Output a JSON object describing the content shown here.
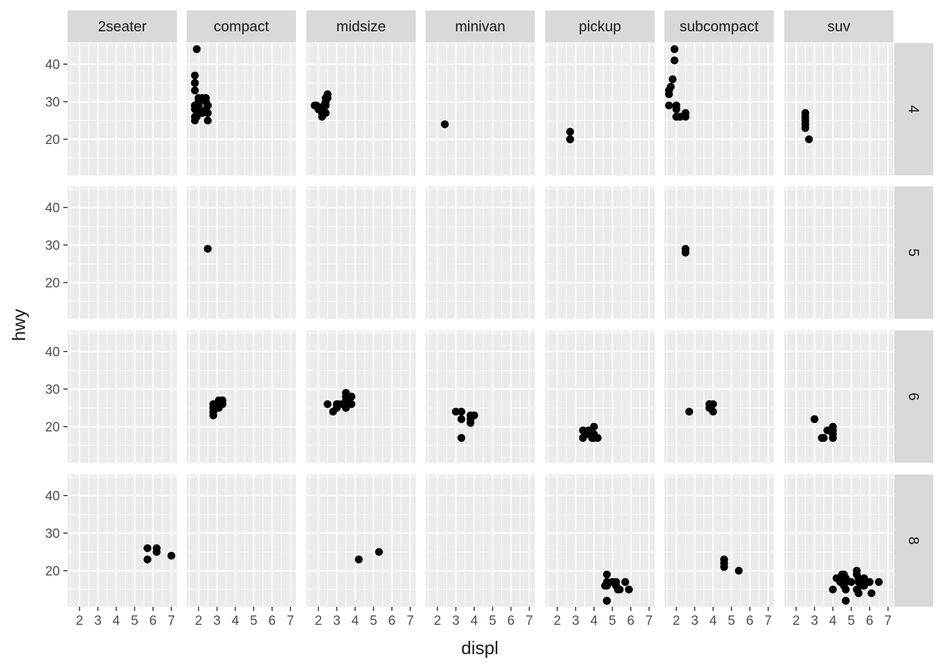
{
  "chart_data": {
    "type": "scatter",
    "title": "",
    "xlabel": "displ",
    "ylabel": "hwy",
    "xlim": [
      1.35,
      7.3
    ],
    "ylim": [
      10.4,
      45.6
    ],
    "x_ticks": [
      2,
      3,
      4,
      5,
      6,
      7
    ],
    "y_ticks": [
      20,
      30,
      40
    ],
    "grid": true,
    "legend": "none",
    "facet_cols": [
      "2seater",
      "compact",
      "midsize",
      "minivan",
      "pickup",
      "subcompact",
      "suv"
    ],
    "facet_rows": [
      "4",
      "5",
      "6",
      "8"
    ],
    "panels": [
      {
        "row": "4",
        "col": "compact",
        "points": [
          [
            1.8,
            29
          ],
          [
            1.8,
            29
          ],
          [
            2.0,
            31
          ],
          [
            2.0,
            30
          ],
          [
            1.8,
            26
          ],
          [
            1.8,
            25
          ],
          [
            2.0,
            28
          ],
          [
            2.0,
            27
          ],
          [
            1.8,
            28
          ],
          [
            1.8,
            29
          ],
          [
            2.0,
            29
          ],
          [
            2.0,
            30
          ],
          [
            1.9,
            44
          ],
          [
            1.9,
            29
          ],
          [
            1.9,
            26
          ],
          [
            1.9,
            29
          ],
          [
            2.0,
            29
          ],
          [
            2.0,
            29
          ],
          [
            2.5,
            29
          ],
          [
            2.5,
            29
          ],
          [
            2.5,
            25
          ],
          [
            2.5,
            27
          ],
          [
            2.2,
            31
          ],
          [
            2.2,
            27
          ],
          [
            2.4,
            30
          ],
          [
            2.4,
            31
          ],
          [
            1.8,
            33
          ],
          [
            1.8,
            35
          ],
          [
            1.8,
            37
          ],
          [
            1.8,
            35
          ],
          [
            2.4,
            28
          ],
          [
            2.5,
            29
          ],
          [
            2.0,
            31
          ]
        ]
      },
      {
        "row": "5",
        "col": "compact",
        "points": [
          [
            2.5,
            29
          ]
        ]
      },
      {
        "row": "6",
        "col": "compact",
        "points": [
          [
            2.8,
            26
          ],
          [
            2.8,
            25
          ],
          [
            3.1,
            27
          ],
          [
            3.1,
            25
          ],
          [
            2.8,
            24
          ],
          [
            2.8,
            23
          ],
          [
            3.3,
            27
          ],
          [
            3.3,
            26
          ],
          [
            3.0,
            26
          ],
          [
            3.0,
            25
          ]
        ]
      },
      {
        "row": "8",
        "col": "2seater",
        "points": [
          [
            5.7,
            26
          ],
          [
            5.7,
            23
          ],
          [
            6.2,
            26
          ],
          [
            6.2,
            25
          ],
          [
            7.0,
            24
          ]
        ]
      },
      {
        "row": "4",
        "col": "midsize",
        "points": [
          [
            1.8,
            29
          ],
          [
            2.0,
            28
          ],
          [
            2.4,
            29
          ],
          [
            2.4,
            30
          ],
          [
            2.5,
            32
          ],
          [
            2.5,
            31
          ],
          [
            2.2,
            26
          ],
          [
            2.2,
            27
          ],
          [
            2.4,
            27
          ],
          [
            2.4,
            31
          ],
          [
            2.1,
            28
          ],
          [
            2.3,
            29
          ],
          [
            1.9,
            29
          ]
        ]
      },
      {
        "row": "6",
        "col": "midsize",
        "points": [
          [
            2.8,
            24
          ],
          [
            3.1,
            26
          ],
          [
            3.5,
            29
          ],
          [
            3.5,
            26
          ],
          [
            3.3,
            26
          ],
          [
            3.5,
            28
          ],
          [
            3.5,
            25
          ],
          [
            3.0,
            26
          ],
          [
            3.0,
            25
          ],
          [
            3.6,
            26
          ],
          [
            3.6,
            27
          ],
          [
            3.8,
            26
          ],
          [
            3.8,
            28
          ],
          [
            3.5,
            28
          ],
          [
            3.5,
            27
          ],
          [
            3.7,
            26
          ],
          [
            2.5,
            26
          ]
        ]
      },
      {
        "row": "8",
        "col": "midsize",
        "points": [
          [
            4.2,
            23
          ],
          [
            5.3,
            25
          ]
        ]
      },
      {
        "row": "4",
        "col": "minivan",
        "points": [
          [
            2.4,
            24
          ]
        ]
      },
      {
        "row": "6",
        "col": "minivan",
        "points": [
          [
            3.0,
            24
          ],
          [
            3.3,
            22
          ],
          [
            3.3,
            24
          ],
          [
            3.3,
            17
          ],
          [
            3.8,
            22
          ],
          [
            3.8,
            21
          ],
          [
            4.0,
            23
          ],
          [
            3.8,
            23
          ]
        ]
      },
      {
        "row": "4",
        "col": "pickup",
        "points": [
          [
            2.7,
            20
          ],
          [
            2.7,
            22
          ],
          [
            2.7,
            20
          ]
        ]
      },
      {
        "row": "6",
        "col": "pickup",
        "points": [
          [
            3.4,
            19
          ],
          [
            3.4,
            17
          ],
          [
            3.7,
            19
          ],
          [
            3.9,
            17
          ],
          [
            4.0,
            20
          ],
          [
            4.0,
            18
          ],
          [
            4.2,
            17
          ],
          [
            3.7,
            18
          ],
          [
            4.0,
            17
          ]
        ]
      },
      {
        "row": "8",
        "col": "pickup",
        "points": [
          [
            4.7,
            12
          ],
          [
            4.7,
            17
          ],
          [
            5.2,
            17
          ],
          [
            5.7,
            17
          ],
          [
            5.9,
            15
          ],
          [
            4.7,
            16
          ],
          [
            4.7,
            19
          ],
          [
            5.2,
            16
          ],
          [
            5.3,
            15
          ],
          [
            5.4,
            15
          ],
          [
            4.6,
            16
          ],
          [
            5.0,
            17
          ],
          [
            4.7,
            12
          ]
        ]
      },
      {
        "row": "4",
        "col": "subcompact",
        "points": [
          [
            1.6,
            32
          ],
          [
            1.6,
            33
          ],
          [
            1.6,
            29
          ],
          [
            1.7,
            34
          ],
          [
            1.8,
            36
          ],
          [
            1.9,
            44
          ],
          [
            2.0,
            26
          ],
          [
            2.0,
            29
          ],
          [
            1.9,
            41
          ],
          [
            2.0,
            29
          ],
          [
            2.0,
            26
          ],
          [
            2.2,
            26
          ],
          [
            2.5,
            26
          ],
          [
            2.5,
            27
          ],
          [
            2.0,
            28
          ],
          [
            2.2,
            26
          ]
        ]
      },
      {
        "row": "5",
        "col": "subcompact",
        "points": [
          [
            2.5,
            28
          ],
          [
            2.5,
            29
          ]
        ]
      },
      {
        "row": "6",
        "col": "subcompact",
        "points": [
          [
            2.7,
            24
          ],
          [
            3.8,
            26
          ],
          [
            3.8,
            25
          ],
          [
            4.0,
            26
          ],
          [
            4.0,
            24
          ],
          [
            3.8,
            26
          ]
        ]
      },
      {
        "row": "8",
        "col": "subcompact",
        "points": [
          [
            4.6,
            23
          ],
          [
            4.6,
            22
          ],
          [
            4.6,
            21
          ],
          [
            5.4,
            20
          ]
        ]
      },
      {
        "row": "4",
        "col": "suv",
        "points": [
          [
            2.5,
            26
          ],
          [
            2.5,
            25
          ],
          [
            2.5,
            24
          ],
          [
            2.5,
            23
          ],
          [
            2.5,
            27
          ],
          [
            2.7,
            20
          ]
        ]
      },
      {
        "row": "6",
        "col": "suv",
        "points": [
          [
            3.0,
            22
          ],
          [
            3.4,
            17
          ],
          [
            3.7,
            19
          ],
          [
            4.0,
            20
          ],
          [
            4.0,
            17
          ],
          [
            4.0,
            19
          ],
          [
            3.5,
            17
          ],
          [
            4.0,
            18
          ],
          [
            3.8,
            19
          ],
          [
            4.0,
            17
          ]
        ]
      },
      {
        "row": "8",
        "col": "suv",
        "points": [
          [
            4.0,
            15
          ],
          [
            4.2,
            18
          ],
          [
            4.6,
            19
          ],
          [
            4.7,
            15
          ],
          [
            4.7,
            12
          ],
          [
            4.7,
            17
          ],
          [
            4.7,
            18
          ],
          [
            5.0,
            17
          ],
          [
            5.3,
            20
          ],
          [
            5.3,
            19
          ],
          [
            5.3,
            15
          ],
          [
            5.4,
            17
          ],
          [
            5.4,
            18
          ],
          [
            5.7,
            17
          ],
          [
            5.7,
            16
          ],
          [
            5.9,
            17
          ],
          [
            6.1,
            14
          ],
          [
            6.5,
            17
          ],
          [
            5.6,
            16
          ],
          [
            6.0,
            17
          ],
          [
            4.4,
            17
          ],
          [
            4.6,
            16
          ],
          [
            5.4,
            14
          ],
          [
            5.7,
            18
          ],
          [
            4.5,
            19
          ]
        ]
      }
    ]
  }
}
